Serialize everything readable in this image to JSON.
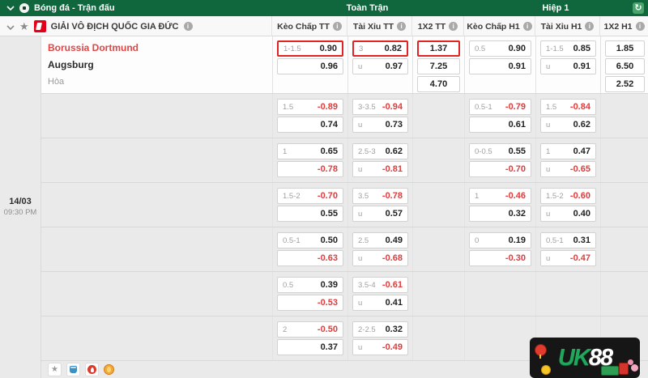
{
  "topbar": {
    "title": "Bóng đá - Trận đấu",
    "full_time_label": "Toàn Trận",
    "first_half_label": "Hiệp 1"
  },
  "league": {
    "name": "GIẢI VÔ ĐỊCH QUỐC GIA ĐỨC"
  },
  "columns": [
    {
      "key": "keo-chap-tt",
      "label": "Kèo Chấp TT",
      "type": "hc"
    },
    {
      "key": "tai-xiu-tt",
      "label": "Tài Xỉu TT",
      "type": "ou"
    },
    {
      "key": "1x2-tt",
      "label": "1X2 TT",
      "type": "x2"
    },
    {
      "key": "keo-chap-h1",
      "label": "Kèo Chấp H1",
      "type": "hc"
    },
    {
      "key": "tai-xiu-h1",
      "label": "Tài Xỉu H1",
      "type": "ou"
    },
    {
      "key": "1x2-h1",
      "label": "1X2 H1",
      "type": "x2"
    }
  ],
  "match": {
    "date": "14/03",
    "time": "09:30 PM",
    "home": "Borussia Dortmund",
    "away": "Augsburg",
    "draw": "Hòa"
  },
  "odds_groups": [
    {
      "cols": [
        [
          {
            "label": "1-1.5",
            "value": "0.90",
            "highlight": true
          },
          {
            "label": "",
            "value": "0.96"
          }
        ],
        [
          {
            "label": "3",
            "value": "0.82",
            "highlight": true
          },
          {
            "label": "u",
            "value": "0.97"
          }
        ],
        [
          {
            "value": "1.37",
            "highlight": true
          },
          {
            "value": "7.25"
          },
          {
            "value": "4.70"
          }
        ],
        [
          {
            "label": "0.5",
            "value": "0.90"
          },
          {
            "label": "",
            "value": "0.91"
          }
        ],
        [
          {
            "label": "1-1.5",
            "value": "0.85"
          },
          {
            "label": "u",
            "value": "0.91"
          }
        ],
        [
          {
            "value": "1.85"
          },
          {
            "value": "6.50"
          },
          {
            "value": "2.52"
          }
        ]
      ]
    },
    {
      "cols": [
        [
          {
            "label": "1.5",
            "value": "-0.89"
          },
          {
            "label": "",
            "value": "0.74"
          }
        ],
        [
          {
            "label": "3-3.5",
            "value": "-0.94"
          },
          {
            "label": "u",
            "value": "0.73"
          }
        ],
        [],
        [
          {
            "label": "0.5-1",
            "value": "-0.79"
          },
          {
            "label": "",
            "value": "0.61"
          }
        ],
        [
          {
            "label": "1.5",
            "value": "-0.84"
          },
          {
            "label": "u",
            "value": "0.62"
          }
        ],
        []
      ]
    },
    {
      "cols": [
        [
          {
            "label": "1",
            "value": "0.65"
          },
          {
            "label": "",
            "value": "-0.78"
          }
        ],
        [
          {
            "label": "2.5-3",
            "value": "0.62"
          },
          {
            "label": "u",
            "value": "-0.81"
          }
        ],
        [],
        [
          {
            "label": "0-0.5",
            "value": "0.55"
          },
          {
            "label": "",
            "value": "-0.70"
          }
        ],
        [
          {
            "label": "1",
            "value": "0.47"
          },
          {
            "label": "u",
            "value": "-0.65"
          }
        ],
        []
      ]
    },
    {
      "cols": [
        [
          {
            "label": "1.5-2",
            "value": "-0.70"
          },
          {
            "label": "",
            "value": "0.55"
          }
        ],
        [
          {
            "label": "3.5",
            "value": "-0.78"
          },
          {
            "label": "u",
            "value": "0.57"
          }
        ],
        [],
        [
          {
            "label": "1",
            "value": "-0.46"
          },
          {
            "label": "",
            "value": "0.32"
          }
        ],
        [
          {
            "label": "1.5-2",
            "value": "-0.60"
          },
          {
            "label": "u",
            "value": "0.40"
          }
        ],
        []
      ]
    },
    {
      "cols": [
        [
          {
            "label": "0.5-1",
            "value": "0.50"
          },
          {
            "label": "",
            "value": "-0.63"
          }
        ],
        [
          {
            "label": "2.5",
            "value": "0.49"
          },
          {
            "label": "u",
            "value": "-0.68"
          }
        ],
        [],
        [
          {
            "label": "0",
            "value": "0.19"
          },
          {
            "label": "",
            "value": "-0.30"
          }
        ],
        [
          {
            "label": "0.5-1",
            "value": "0.31"
          },
          {
            "label": "u",
            "value": "-0.47"
          }
        ],
        []
      ]
    },
    {
      "cols": [
        [
          {
            "label": "0.5",
            "value": "0.39"
          },
          {
            "label": "",
            "value": "-0.53"
          }
        ],
        [
          {
            "label": "3.5-4",
            "value": "-0.61"
          },
          {
            "label": "u",
            "value": "0.41"
          }
        ],
        [],
        [],
        [],
        []
      ]
    },
    {
      "cols": [
        [
          {
            "label": "2",
            "value": "-0.50"
          },
          {
            "label": "",
            "value": "0.37"
          }
        ],
        [
          {
            "label": "2-2.5",
            "value": "0.32"
          },
          {
            "label": "u",
            "value": "-0.49"
          }
        ],
        [],
        [],
        [],
        []
      ]
    }
  ],
  "footer_icons": [
    "favorite-star-icon",
    "bet-slip-icon",
    "hot-match-icon",
    "boosted-odds-icon"
  ],
  "logo": {
    "text_green": "UK",
    "text_white": "88"
  },
  "colors": {
    "bar_green": "#10673e",
    "refresh_green": "#48a36c",
    "highlight_red": "#e02424",
    "negative_red": "#e03c3c",
    "team_red": "#e04545",
    "bundesliga_red": "#e2001a"
  }
}
